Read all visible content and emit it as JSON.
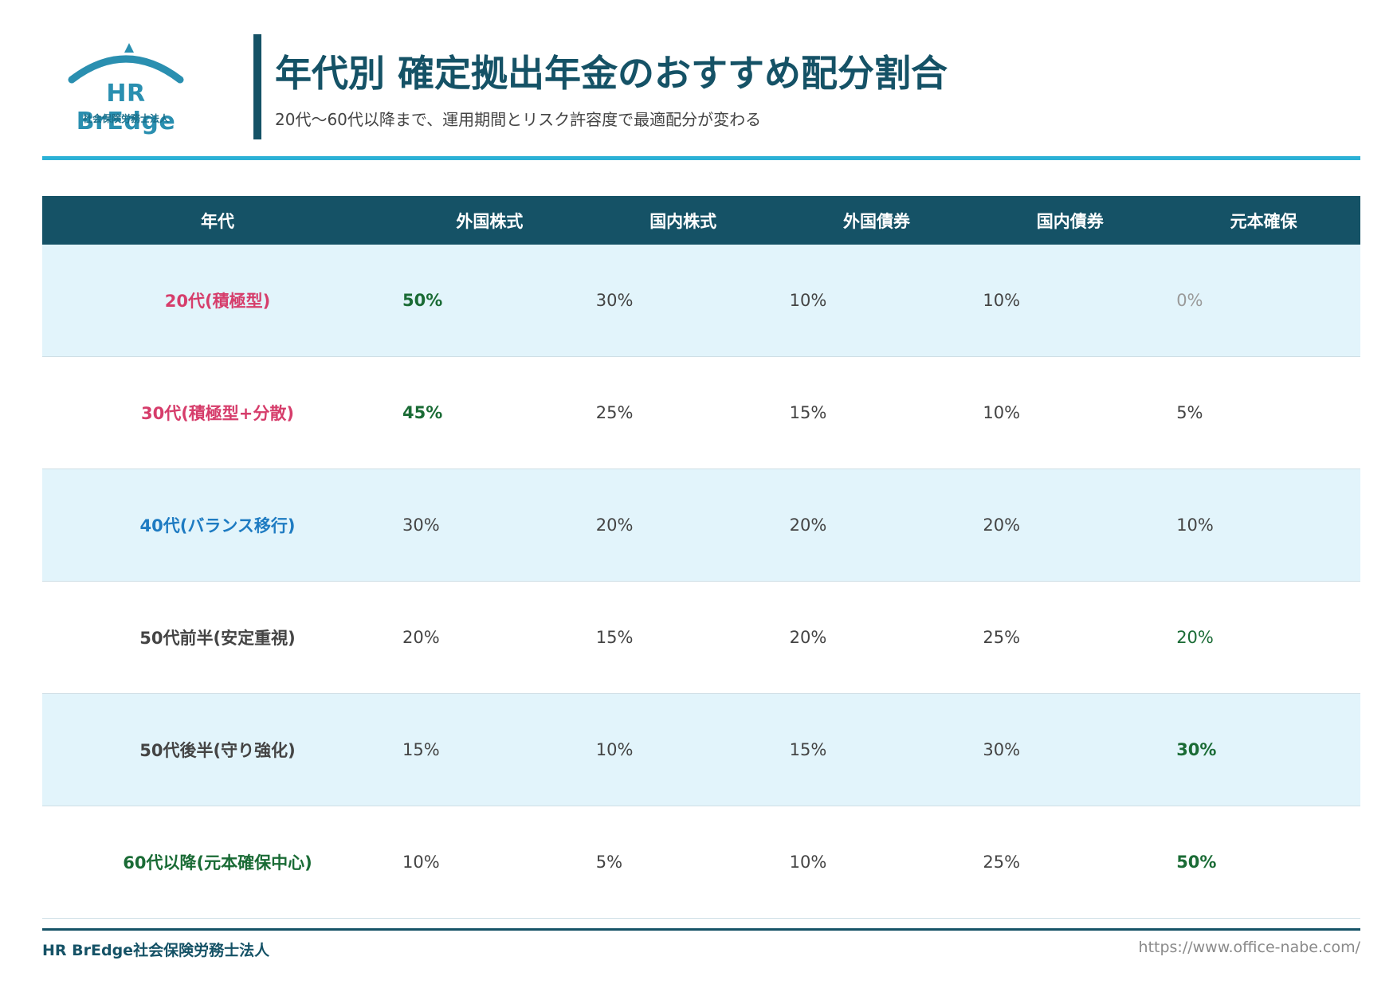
{
  "header": {
    "logo_text": "HR BrEdge",
    "logo_subtext": "社会保険労務士法人",
    "title": "年代別 確定拠出年金のおすすめ配分割合",
    "subtitle": "20代〜60代以降まで、運用期間とリスク許容度で最適配分が変わる"
  },
  "table": {
    "columns": [
      "年代",
      "外国株式",
      "国内株式",
      "外国債券",
      "国内債券",
      "元本確保"
    ],
    "rows": [
      {
        "era": "20代(積極型)",
        "values": [
          "50%",
          "30%",
          "10%",
          "10%",
          "0%"
        ]
      },
      {
        "era": "30代(積極型+分散)",
        "values": [
          "45%",
          "25%",
          "15%",
          "10%",
          "5%"
        ]
      },
      {
        "era": "40代(バランス移行)",
        "values": [
          "30%",
          "20%",
          "20%",
          "20%",
          "10%"
        ]
      },
      {
        "era": "50代前半(安定重視)",
        "values": [
          "20%",
          "15%",
          "20%",
          "25%",
          "20%"
        ]
      },
      {
        "era": "50代後半(守り強化)",
        "values": [
          "15%",
          "10%",
          "15%",
          "30%",
          "30%"
        ]
      },
      {
        "era": "60代以降(元本確保中心)",
        "values": [
          "10%",
          "5%",
          "10%",
          "25%",
          "50%"
        ]
      }
    ]
  },
  "footer": {
    "left": "HR BrEdge社会保険労務士法人",
    "right": "https://www.office-nabe.com/"
  },
  "colors": {
    "primary": "#155266",
    "accent": "#2bb1d6",
    "row_shade": "#e2f4fb",
    "pink": "#d63d6b",
    "blue": "#1e7bc2",
    "green": "#1a6b35"
  }
}
